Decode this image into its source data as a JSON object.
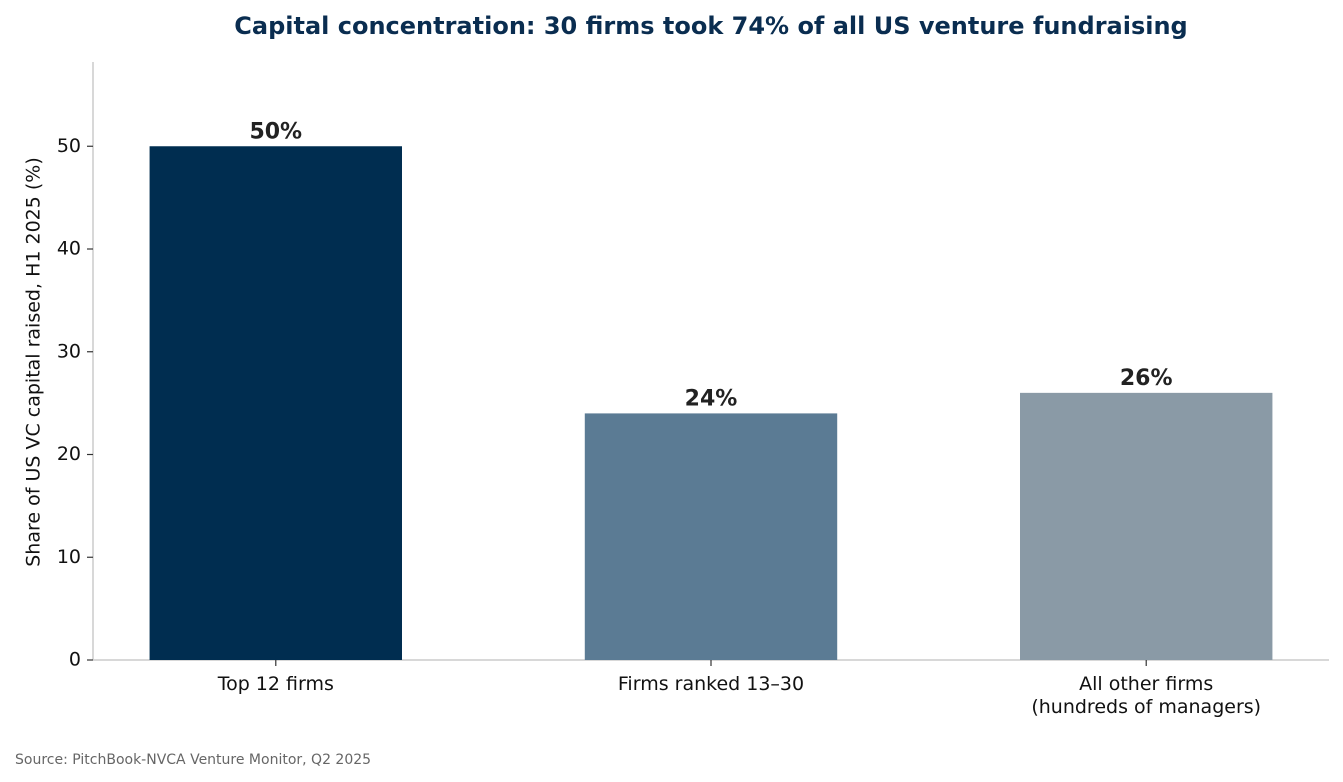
{
  "chart_data": {
    "type": "bar",
    "title": "Capital concentration: 30 firms took 74% of all US venture fundraising",
    "ylabel": "Share of US VC capital raised, H1 2025 (%)",
    "categories": [
      "Top 12 firms",
      "Firms ranked 13–30",
      "All other firms\n(hundreds of managers)"
    ],
    "values": [
      50,
      24,
      26
    ],
    "value_labels": [
      "50%",
      "24%",
      "26%"
    ],
    "colors": [
      "#002d50",
      "#5b7b94",
      "#8a9aa6"
    ],
    "ylim": [
      0,
      58.2
    ],
    "yticks": [
      0,
      10,
      20,
      30,
      40,
      50
    ],
    "grid": false,
    "source": "Source: PitchBook-NVCA Venture Monitor, Q2 2025"
  }
}
